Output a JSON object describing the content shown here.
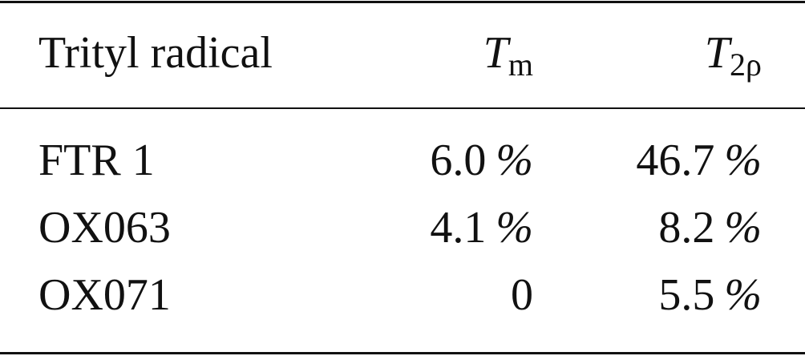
{
  "table": {
    "header": [
      {
        "text": "Trityl radical"
      },
      {
        "symbol": "T",
        "subscript": "m"
      },
      {
        "symbol": "T",
        "subscript": "2ρ"
      }
    ],
    "rows": [
      [
        {
          "text": "FTR 1"
        },
        {
          "number": "6.0",
          "unit": "%"
        },
        {
          "number": "46.7",
          "unit": "%"
        }
      ],
      [
        {
          "text": "OX063"
        },
        {
          "number": "4.1",
          "unit": "%"
        },
        {
          "number": "8.2",
          "unit": "%"
        }
      ],
      [
        {
          "text": "OX071"
        },
        {
          "number": "0"
        },
        {
          "number": "5.5",
          "unit": "%"
        }
      ]
    ]
  }
}
